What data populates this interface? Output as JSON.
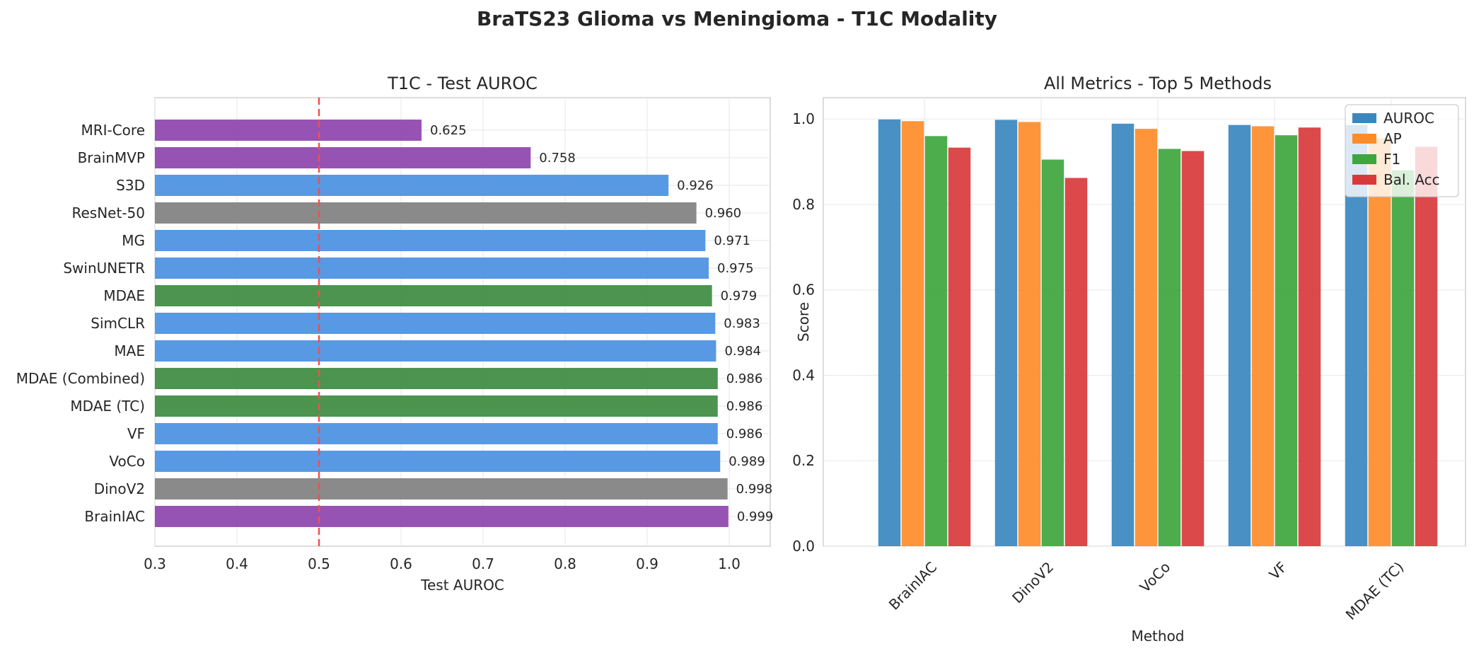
{
  "title": "BraTS23 Glioma vs Meningioma - T1C Modality",
  "chart_data": [
    {
      "type": "bar",
      "orientation": "horizontal",
      "title": "T1C - Test AUROC",
      "xlabel": "Test AUROC",
      "ylabel": "",
      "xlim": [
        0.3,
        1.05
      ],
      "xticks": [
        "0.3",
        "0.4",
        "0.5",
        "0.6",
        "0.7",
        "0.8",
        "0.9",
        "1.0"
      ],
      "reference_line": {
        "x": 0.5,
        "style": "dashed",
        "color": "#f05050"
      },
      "grid": true,
      "categories": [
        "MRI-Core",
        "BrainMVP",
        "S3D",
        "ResNet-50",
        "MG",
        "SwinUNETR",
        "MDAE",
        "SimCLR",
        "MAE",
        "MDAE (Combined)",
        "MDAE (TC)",
        "VF",
        "VoCo",
        "DinoV2",
        "BrainIAC"
      ],
      "values": [
        0.625,
        0.758,
        0.926,
        0.96,
        0.971,
        0.975,
        0.979,
        0.983,
        0.984,
        0.986,
        0.986,
        0.986,
        0.989,
        0.998,
        0.999
      ],
      "value_labels": [
        "0.625",
        "0.758",
        "0.926",
        "0.960",
        "0.971",
        "0.975",
        "0.979",
        "0.983",
        "0.984",
        "0.986",
        "0.986",
        "0.986",
        "0.989",
        "0.998",
        "0.999"
      ],
      "bar_colors": [
        "#8e44ad",
        "#8e44ad",
        "#4a90e2",
        "#808080",
        "#4a90e2",
        "#4a90e2",
        "#3d8b40",
        "#4a90e2",
        "#4a90e2",
        "#3d8b40",
        "#3d8b40",
        "#4a90e2",
        "#4a90e2",
        "#808080",
        "#8e44ad"
      ]
    },
    {
      "type": "bar",
      "title": "All Metrics - Top 5 Methods",
      "xlabel": "Method",
      "ylabel": "Score",
      "ylim": [
        0,
        1.05
      ],
      "yticks": [
        "0.0",
        "0.2",
        "0.4",
        "0.6",
        "0.8",
        "1.0"
      ],
      "grid": true,
      "legend_position": "top-right",
      "categories": [
        "BrainIAC",
        "DinoV2",
        "VoCo",
        "VF",
        "MDAE (TC)"
      ],
      "series": [
        {
          "name": "AUROC",
          "color": "#3a87c0",
          "values": [
            0.999,
            0.998,
            0.989,
            0.986,
            0.986
          ]
        },
        {
          "name": "AP",
          "color": "#ff8c2a",
          "values": [
            0.995,
            0.993,
            0.977,
            0.983,
            0.955
          ]
        },
        {
          "name": "F1",
          "color": "#3ea63e",
          "values": [
            0.96,
            0.905,
            0.93,
            0.962,
            0.88
          ]
        },
        {
          "name": "Bal. Acc",
          "color": "#d83a3c",
          "values": [
            0.933,
            0.862,
            0.925,
            0.98,
            0.935
          ]
        }
      ]
    }
  ]
}
